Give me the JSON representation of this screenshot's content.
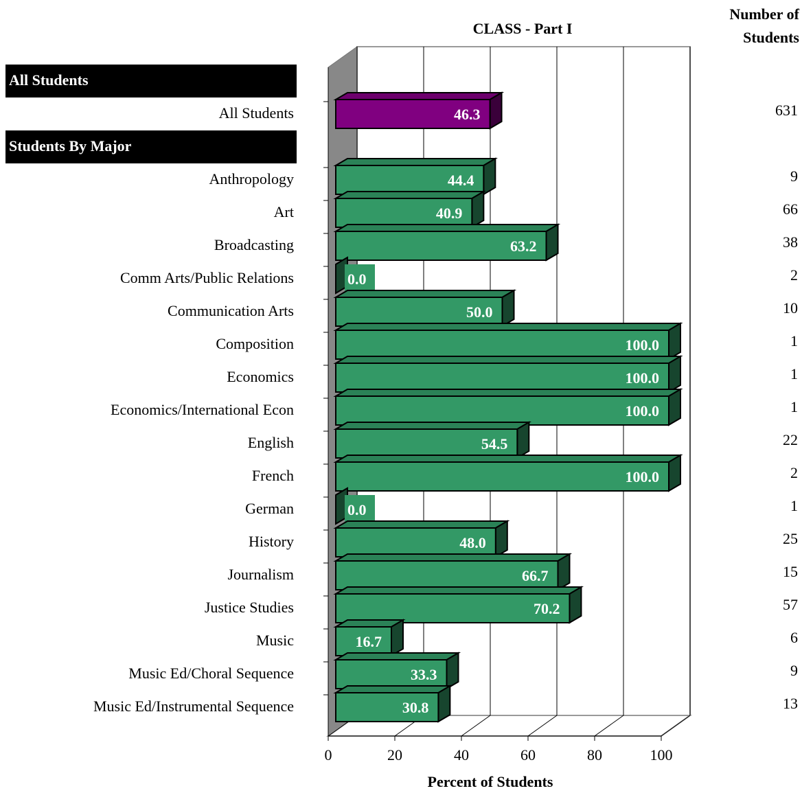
{
  "chart_data": {
    "type": "bar3d_horizontal",
    "title": "CLASS - Part I",
    "xlabel": "Percent of Students",
    "count_header": "Number of Students",
    "xlim": [
      0,
      100
    ],
    "xticks": [
      0,
      20,
      40,
      60,
      80,
      100
    ],
    "grid": true,
    "sections": [
      {
        "title": "All Students",
        "color": "#800080",
        "categories": [
          "All Students"
        ],
        "values": [
          46.3
        ],
        "value_labels": [
          "46.3"
        ],
        "counts": [
          631
        ]
      },
      {
        "title": "Students By Major",
        "color": "#339966",
        "categories": [
          "Anthropology",
          "Art",
          "Broadcasting",
          "Comm Arts/Public Relations",
          "Communication Arts",
          "Composition",
          "Economics",
          "Economics/International Econ",
          "English",
          "French",
          "German",
          "History",
          "Journalism",
          "Justice Studies",
          "Music",
          "Music Ed/Choral Sequence",
          "Music Ed/Instrumental Sequence"
        ],
        "values": [
          44.4,
          40.9,
          63.2,
          0,
          50,
          100,
          100,
          100,
          54.5,
          100,
          0,
          48,
          66.7,
          70.2,
          16.7,
          33.3,
          30.8
        ],
        "value_labels": [
          "44.4",
          "40.9",
          "63.2",
          "0.0",
          "50.0",
          "100.0",
          "100.0",
          "100.0",
          "54.5",
          "100.0",
          "0.0",
          "48.0",
          "66.7",
          "70.2",
          "16.7",
          "33.3",
          "30.8"
        ],
        "counts": [
          9,
          66,
          38,
          2,
          10,
          1,
          1,
          1,
          22,
          2,
          1,
          25,
          15,
          57,
          6,
          9,
          13
        ]
      }
    ]
  }
}
